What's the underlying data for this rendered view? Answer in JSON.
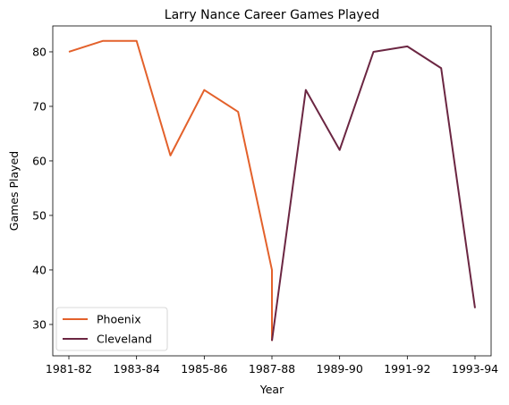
{
  "chart_data": {
    "type": "line",
    "title": "Larry Nance Career Games Played",
    "xlabel": "Year",
    "ylabel": "Games Played",
    "x_ticks": [
      "1981-82",
      "1983-84",
      "1985-86",
      "1987-88",
      "1989-90",
      "1991-92",
      "1993-94"
    ],
    "y_ticks": [
      30,
      40,
      50,
      60,
      70,
      80
    ],
    "xlim": [
      0,
      12
    ],
    "ylim": [
      24.25,
      84.75
    ],
    "legend_position": "lower-left",
    "series": [
      {
        "name": "Phoenix",
        "color": "#e3612b",
        "points": [
          [
            0,
            80
          ],
          [
            1,
            82
          ],
          [
            2,
            82
          ],
          [
            3,
            61
          ],
          [
            4,
            73
          ],
          [
            5,
            69
          ],
          [
            6,
            40
          ],
          [
            6,
            27
          ]
        ]
      },
      {
        "name": "Cleveland",
        "color": "#6b2642",
        "points": [
          [
            6,
            27
          ],
          [
            7,
            73
          ],
          [
            8,
            62
          ],
          [
            9,
            80
          ],
          [
            10,
            81
          ],
          [
            11,
            77
          ],
          [
            12,
            33
          ]
        ]
      }
    ]
  }
}
